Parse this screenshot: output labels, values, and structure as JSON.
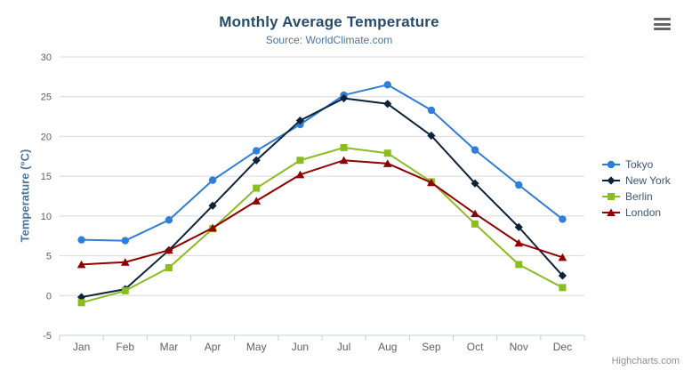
{
  "title": "Monthly Average Temperature",
  "subtitle": "Source: WorldClimate.com",
  "y_axis_title": "Temperature (°C)",
  "credits": "Highcharts.com",
  "menu_icon": "hamburger-menu-icon",
  "colors": {
    "title": "#274b6d",
    "subtitle": "#4d759e",
    "axis_title": "#4d759e",
    "axis_label": "#606060",
    "grid_line": "#D8D8D8",
    "axis_line": "#C0D0E0",
    "legend_text": "#3E576F",
    "credits_text": "#909090",
    "menu_icon": "#666666"
  },
  "chart_data": {
    "type": "line",
    "title": "Monthly Average Temperature",
    "subtitle": "Source: WorldClimate.com",
    "xlabel": "",
    "ylabel": "Temperature (°C)",
    "ylim": [
      -5,
      30
    ],
    "y_ticks": [
      -5,
      0,
      5,
      10,
      15,
      20,
      25,
      30
    ],
    "grid": true,
    "legend_position": "right",
    "categories": [
      "Jan",
      "Feb",
      "Mar",
      "Apr",
      "May",
      "Jun",
      "Jul",
      "Aug",
      "Sep",
      "Oct",
      "Nov",
      "Dec"
    ],
    "series": [
      {
        "name": "Tokyo",
        "color": "#2f7ed8",
        "marker": "circle",
        "values": [
          7.0,
          6.9,
          9.5,
          14.5,
          18.2,
          21.5,
          25.2,
          26.5,
          23.3,
          18.3,
          13.9,
          9.6
        ]
      },
      {
        "name": "New York",
        "color": "#0d233a",
        "marker": "diamond",
        "values": [
          -0.2,
          0.8,
          5.7,
          11.3,
          17.0,
          22.0,
          24.8,
          24.1,
          20.1,
          14.1,
          8.6,
          2.5
        ]
      },
      {
        "name": "Berlin",
        "color": "#8bbc21",
        "marker": "square",
        "values": [
          -0.9,
          0.6,
          3.5,
          8.4,
          13.5,
          17.0,
          18.6,
          17.9,
          14.3,
          9.0,
          3.9,
          1.0
        ]
      },
      {
        "name": "London",
        "color": "#910000",
        "marker": "triangle",
        "values": [
          3.9,
          4.2,
          5.7,
          8.5,
          11.9,
          15.2,
          17.0,
          16.6,
          14.2,
          10.3,
          6.6,
          4.8
        ]
      }
    ]
  }
}
